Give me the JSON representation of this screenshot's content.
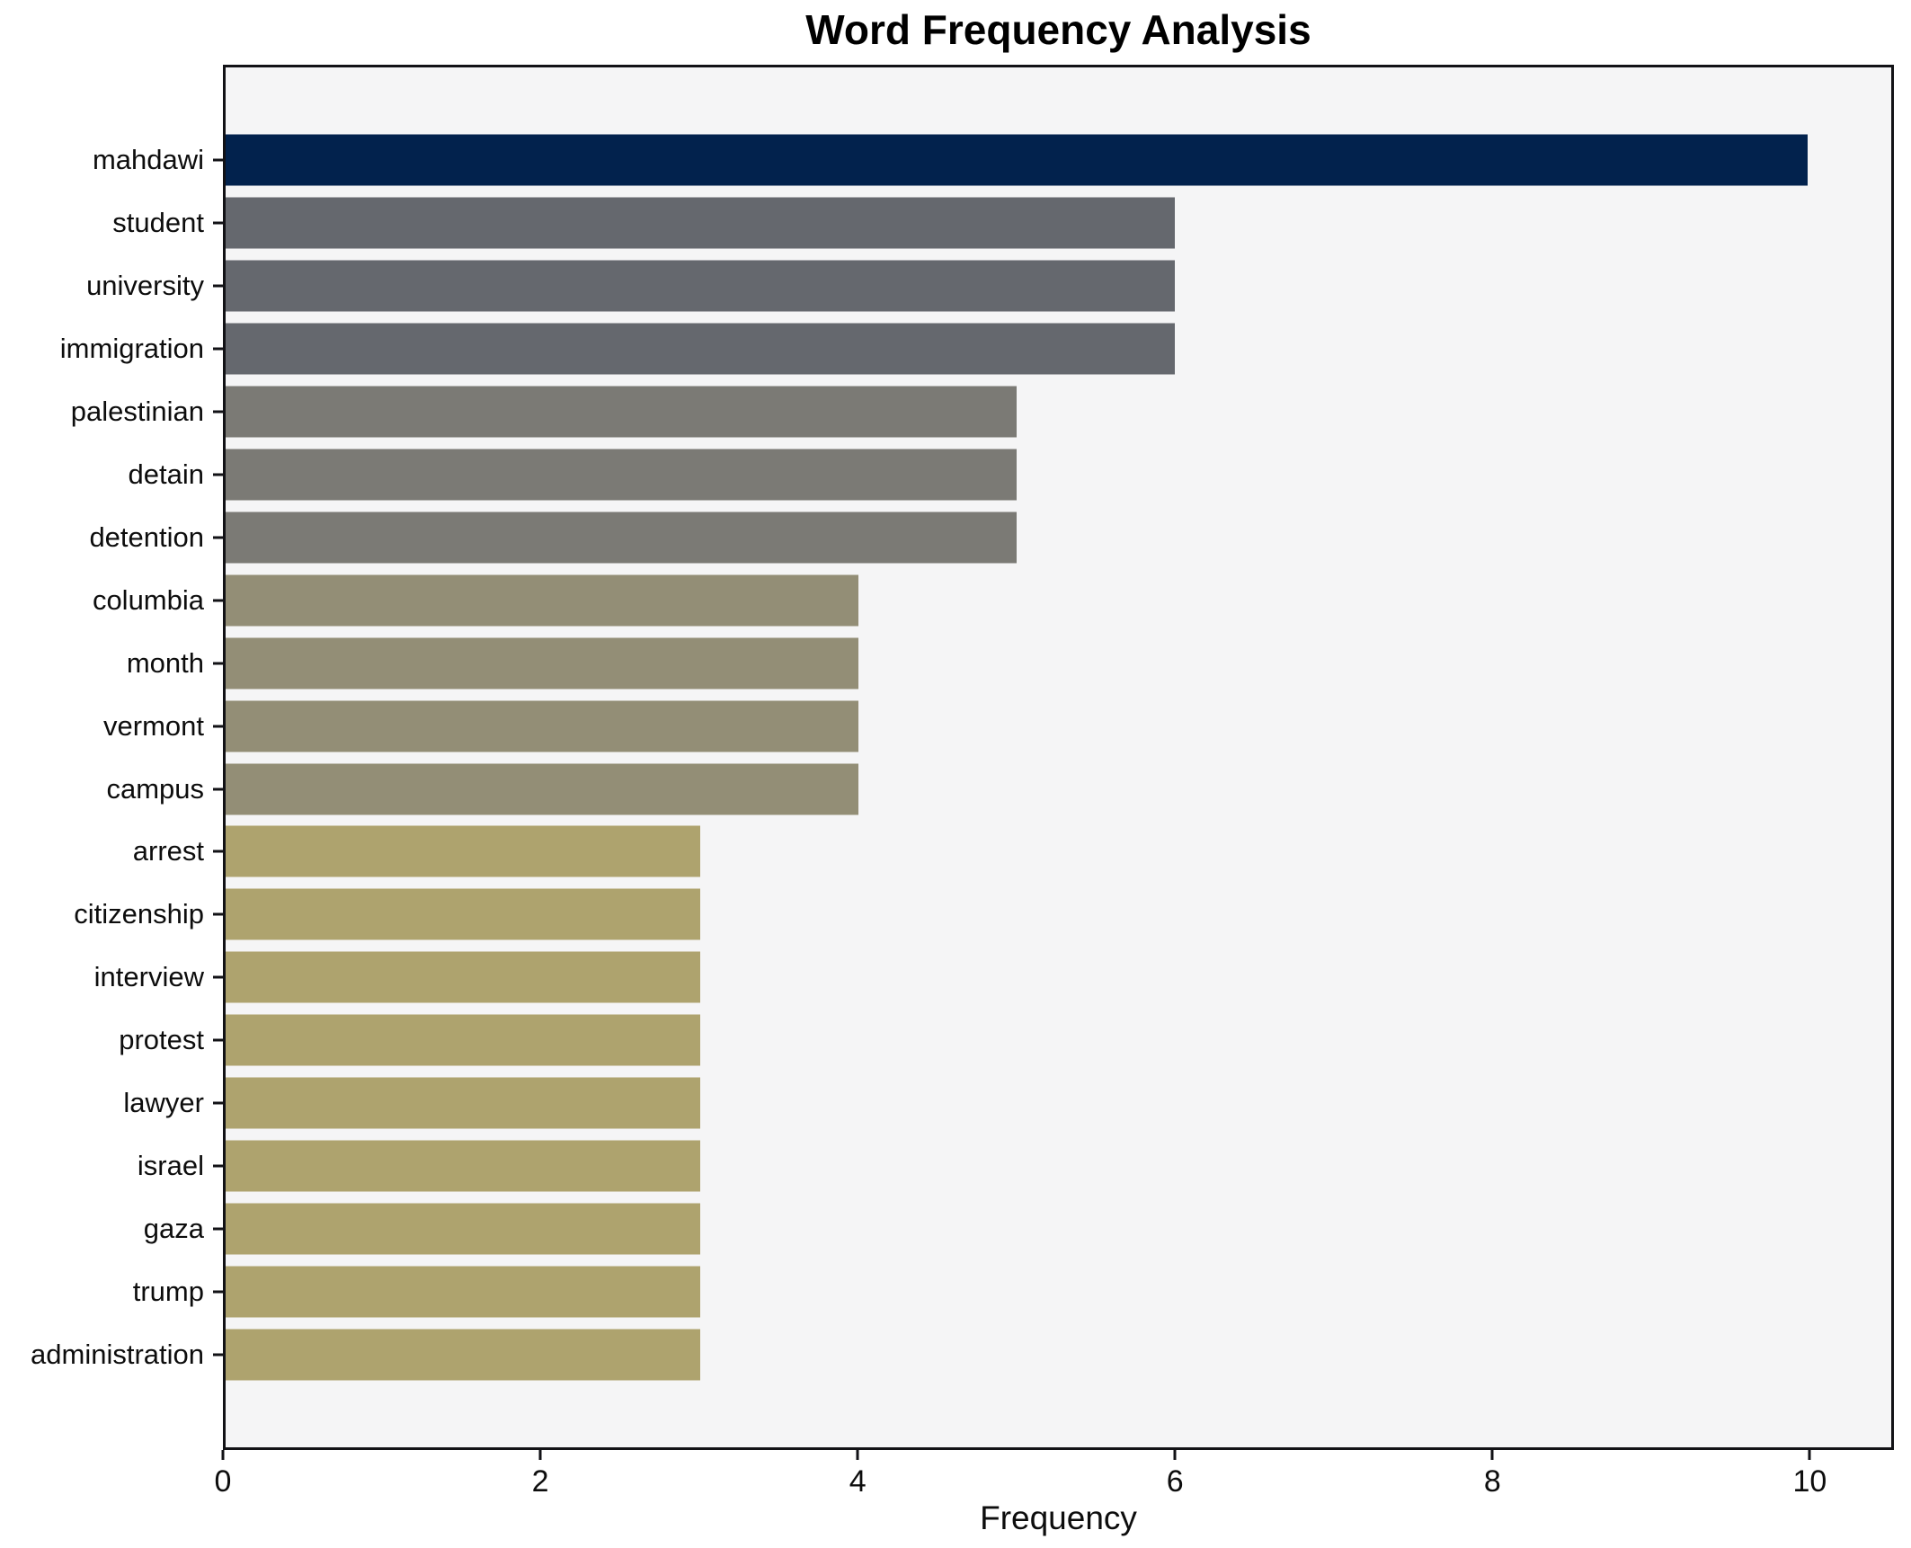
{
  "title": "Word Frequency Analysis",
  "chart_data": {
    "type": "bar",
    "orientation": "horizontal",
    "title": "Word Frequency Analysis",
    "xlabel": "Frequency",
    "ylabel": "",
    "categories": [
      "mahdawi",
      "student",
      "university",
      "immigration",
      "palestinian",
      "detain",
      "detention",
      "columbia",
      "month",
      "vermont",
      "campus",
      "arrest",
      "citizenship",
      "interview",
      "protest",
      "lawyer",
      "israel",
      "gaza",
      "trump",
      "administration"
    ],
    "values": [
      10,
      6,
      6,
      6,
      5,
      5,
      5,
      4,
      4,
      4,
      4,
      3,
      3,
      3,
      3,
      3,
      3,
      3,
      3,
      3
    ],
    "xticks": [
      0,
      2,
      4,
      6,
      8,
      10
    ],
    "xlim": [
      0,
      10.53
    ],
    "grid": false,
    "legend": null,
    "bar_height_fraction": 0.8,
    "colors": {
      "plot_background": "#f5f5f6",
      "figure_background": "#ffffff",
      "spine": "#121216",
      "text": "#0d0d0d",
      "value_10": "#02224d",
      "value_6": "#65686e",
      "value_5": "#7b7a75",
      "value_4": "#938e76",
      "value_3": "#aea36e"
    }
  }
}
